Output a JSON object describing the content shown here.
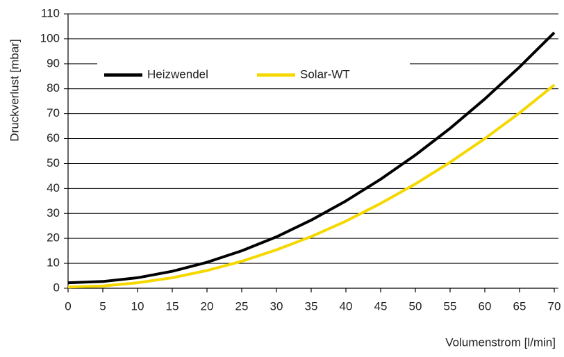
{
  "chart_data": {
    "type": "line",
    "x_label": "Volumenstrom [l/min]",
    "y_label": "Druckverlust [mbar]",
    "x": [
      0,
      5,
      10,
      15,
      20,
      25,
      30,
      35,
      40,
      45,
      50,
      55,
      60,
      65,
      70
    ],
    "series": [
      {
        "name": "Heizwendel",
        "color": "#000000",
        "values": [
          2.2,
          2.7,
          4.2,
          6.8,
          10.4,
          15.0,
          20.6,
          27.3,
          35.0,
          43.7,
          53.4,
          64.1,
          75.9,
          88.7,
          102.5
        ]
      },
      {
        "name": "Solar-WT",
        "color": "#f5d800",
        "values": [
          0.5,
          0.9,
          2.2,
          4.2,
          7.1,
          10.8,
          15.4,
          20.7,
          26.9,
          34.0,
          41.8,
          50.5,
          60.0,
          70.3,
          81.5
        ]
      }
    ],
    "xlim": [
      0,
      70
    ],
    "xticks": [
      0,
      5,
      10,
      15,
      20,
      25,
      30,
      35,
      40,
      45,
      50,
      55,
      60,
      65,
      70
    ],
    "ylim": [
      0,
      110
    ],
    "yticks": [
      0,
      10,
      20,
      30,
      40,
      50,
      60,
      70,
      80,
      90,
      100,
      110
    ],
    "grid": true,
    "legend": "top-left"
  }
}
